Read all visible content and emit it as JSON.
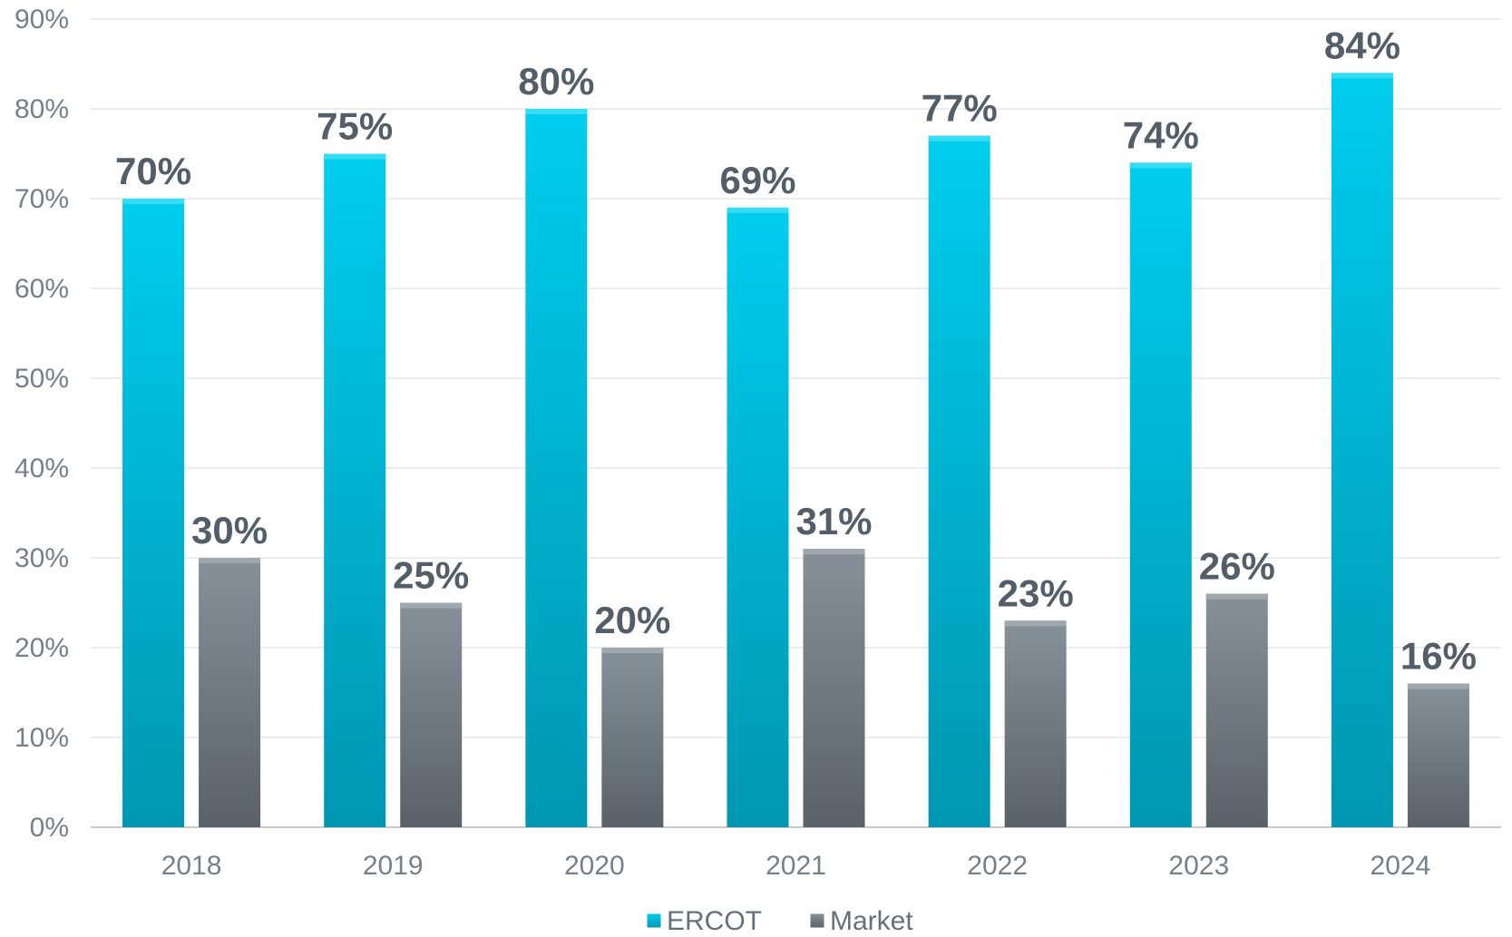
{
  "chart_data": {
    "type": "bar",
    "title": "",
    "xlabel": "",
    "ylabel": "",
    "categories": [
      "2018",
      "2019",
      "2020",
      "2021",
      "2022",
      "2023",
      "2024"
    ],
    "series": [
      {
        "name": "ERCOT",
        "values": [
          70,
          75,
          80,
          69,
          77,
          74,
          84
        ],
        "color": "#00a9cc"
      },
      {
        "name": "Market",
        "values": [
          30,
          25,
          20,
          31,
          23,
          26,
          16
        ],
        "color": "#747c84"
      }
    ],
    "data_label_format": "{v}%",
    "ylim": [
      0,
      90
    ],
    "yticks": [
      0,
      10,
      20,
      30,
      40,
      50,
      60,
      70,
      80,
      90
    ],
    "ytick_labels": [
      "0%",
      "10%",
      "20%",
      "30%",
      "40%",
      "50%",
      "60%",
      "70%",
      "80%",
      "90%"
    ],
    "grid": true,
    "legend_position": "bottom-center"
  }
}
